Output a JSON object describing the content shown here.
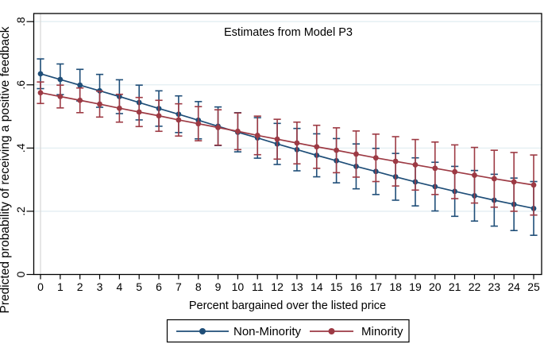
{
  "figure": {
    "title": "Estimates from Model P3",
    "x_axis": {
      "label": "Percent bargained over the listed price"
    },
    "y_axis": {
      "label": "Predicted probability of receiving a positive feedback"
    },
    "legend": [
      {
        "name": "Non-Minority",
        "color": "#1f4e78"
      },
      {
        "name": "Minority",
        "color": "#9d3a44"
      }
    ],
    "colors": {
      "gridline": "#e3eef2",
      "zero_gridline": "#d9d9d9",
      "axis": "#000000",
      "plot_background": "#ffffff"
    }
  },
  "chart_data": {
    "type": "line",
    "title": "Estimates from Model P3",
    "xlabel": "Percent bargained over the listed price",
    "ylabel": "Predicted probability of receiving a positive feedback",
    "x": [
      0,
      1,
      2,
      3,
      4,
      5,
      6,
      7,
      8,
      9,
      10,
      11,
      12,
      13,
      14,
      15,
      16,
      17,
      18,
      19,
      20,
      21,
      22,
      23,
      24,
      25
    ],
    "x_tick_labels": [
      "0",
      "1",
      "2",
      "3",
      "4",
      "5",
      "6",
      "7",
      "8",
      "9",
      "10",
      "11",
      "12",
      "13",
      "14",
      "15",
      "16",
      "17",
      "18",
      "19",
      "20",
      "21",
      "22",
      "23",
      "24",
      "25"
    ],
    "y_ticks": {
      "labels": [
        "0",
        ".2",
        ".4",
        ".6",
        ".8"
      ],
      "values": [
        0,
        0.2,
        0.4,
        0.6,
        0.8
      ]
    },
    "ylim": [
      0,
      0.8
    ],
    "grid": "horizontal",
    "error_bars": true,
    "legend_position": "bottom-center",
    "series": [
      {
        "name": "Non-Minority",
        "color": "#1f4e78",
        "values": [
          0.635,
          0.617,
          0.599,
          0.581,
          0.563,
          0.544,
          0.525,
          0.507,
          0.488,
          0.469,
          0.45,
          0.432,
          0.413,
          0.395,
          0.377,
          0.36,
          0.342,
          0.326,
          0.309,
          0.293,
          0.278,
          0.263,
          0.249,
          0.235,
          0.222,
          0.209
        ],
        "ci_low": [
          0.588,
          0.569,
          0.549,
          0.529,
          0.509,
          0.489,
          0.469,
          0.449,
          0.429,
          0.408,
          0.388,
          0.368,
          0.348,
          0.328,
          0.309,
          0.29,
          0.271,
          0.253,
          0.235,
          0.217,
          0.201,
          0.184,
          0.169,
          0.153,
          0.139,
          0.124
        ],
        "ci_high": [
          0.682,
          0.666,
          0.649,
          0.633,
          0.616,
          0.599,
          0.581,
          0.565,
          0.547,
          0.53,
          0.512,
          0.496,
          0.478,
          0.462,
          0.445,
          0.43,
          0.413,
          0.399,
          0.383,
          0.369,
          0.355,
          0.342,
          0.329,
          0.317,
          0.305,
          0.294
        ]
      },
      {
        "name": "Minority",
        "color": "#9d3a44",
        "values": [
          0.575,
          0.563,
          0.551,
          0.539,
          0.526,
          0.514,
          0.502,
          0.489,
          0.477,
          0.465,
          0.453,
          0.44,
          0.428,
          0.416,
          0.404,
          0.393,
          0.381,
          0.369,
          0.358,
          0.347,
          0.336,
          0.325,
          0.314,
          0.303,
          0.293,
          0.283
        ],
        "ci_low": [
          0.541,
          0.527,
          0.512,
          0.498,
          0.482,
          0.468,
          0.453,
          0.438,
          0.423,
          0.409,
          0.395,
          0.379,
          0.365,
          0.35,
          0.336,
          0.322,
          0.308,
          0.294,
          0.28,
          0.267,
          0.253,
          0.24,
          0.226,
          0.213,
          0.2,
          0.188
        ],
        "ci_high": [
          0.609,
          0.599,
          0.59,
          0.58,
          0.57,
          0.56,
          0.551,
          0.54,
          0.531,
          0.521,
          0.511,
          0.501,
          0.491,
          0.482,
          0.472,
          0.464,
          0.454,
          0.444,
          0.436,
          0.427,
          0.419,
          0.41,
          0.402,
          0.393,
          0.386,
          0.378
        ]
      }
    ]
  }
}
